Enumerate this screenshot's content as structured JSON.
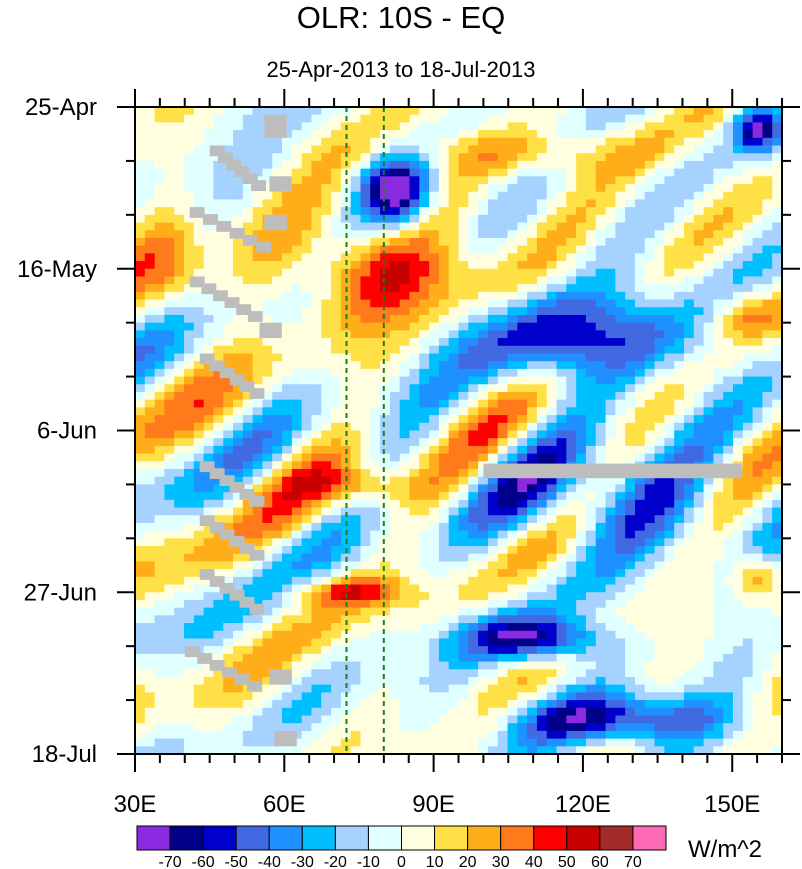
{
  "chart_data": {
    "type": "heatmap",
    "title": "OLR: 10S - EQ",
    "subtitle": "25-Apr-2013 to 18-Jul-2013",
    "xlabel": "",
    "ylabel": "",
    "x_range": [
      30,
      160
    ],
    "x_ticks": [
      {
        "value": 30,
        "label": "30E"
      },
      {
        "value": 60,
        "label": "60E"
      },
      {
        "value": 90,
        "label": "90E"
      },
      {
        "value": 120,
        "label": "120E"
      },
      {
        "value": 150,
        "label": "150E"
      }
    ],
    "y_range_days": [
      0,
      84
    ],
    "y_ticks": [
      {
        "value": 0,
        "label": "25-Apr"
      },
      {
        "value": 21,
        "label": "16-May"
      },
      {
        "value": 42,
        "label": "6-Jun"
      },
      {
        "value": 63,
        "label": "27-Jun"
      },
      {
        "value": 84,
        "label": "18-Jul"
      }
    ],
    "reference_longitudes": [
      72.5,
      80
    ],
    "colorbar": {
      "units": "W/m^2",
      "labels": [
        "-70",
        "-60",
        "-50",
        "-40",
        "-30",
        "-20",
        "-10",
        "0",
        "10",
        "20",
        "30",
        "40",
        "50",
        "60",
        "70"
      ],
      "colors": [
        "#8a2be2",
        "#00008b",
        "#0000cd",
        "#4169e1",
        "#1e90ff",
        "#00bfff",
        "#a5d2ff",
        "#e0ffff",
        "#ffffe0",
        "#ffe147",
        "#ffae1a",
        "#ff7a1a",
        "#ff0000",
        "#c80000",
        "#a52a2a",
        "#ff69b4"
      ]
    },
    "features": [
      {
        "kind": "suppressed",
        "lon": [
          60,
          100
        ],
        "days": [
          15,
          28
        ],
        "value": 45
      },
      {
        "kind": "suppressed",
        "lon": [
          30,
          45
        ],
        "days": [
          14,
          28
        ],
        "value": 25
      },
      {
        "kind": "suppressed",
        "lon": [
          60,
          88
        ],
        "days": [
          46,
          52
        ],
        "value": 30
      },
      {
        "kind": "suppressed",
        "lon": [
          62,
          84
        ],
        "days": [
          61,
          65
        ],
        "value": 40
      },
      {
        "kind": "suppressed",
        "lon": [
          80,
          135
        ],
        "days": [
          3,
          9
        ],
        "value": 22
      },
      {
        "kind": "suppressed",
        "lon": [
          145,
          160
        ],
        "days": [
          24,
          30
        ],
        "value": 30
      },
      {
        "kind": "suppressed",
        "lon": [
          150,
          160
        ],
        "days": [
          58,
          64
        ],
        "value": 35
      },
      {
        "kind": "enhanced",
        "lon": [
          75,
          90
        ],
        "days": [
          6,
          16
        ],
        "value": -70
      },
      {
        "kind": "enhanced",
        "lon": [
          95,
          145
        ],
        "days": [
          24,
          36
        ],
        "value": -55
      },
      {
        "kind": "enhanced",
        "lon": [
          100,
          150
        ],
        "days": [
          44,
          58
        ],
        "value": -40
      },
      {
        "kind": "enhanced",
        "lon": [
          95,
          125
        ],
        "days": [
          66,
          72
        ],
        "value": -65
      },
      {
        "kind": "enhanced",
        "lon": [
          105,
          150
        ],
        "days": [
          76,
          83
        ],
        "value": -60
      },
      {
        "kind": "enhanced",
        "lon": [
          150,
          160
        ],
        "days": [
          0,
          6
        ],
        "value": -60
      }
    ]
  }
}
